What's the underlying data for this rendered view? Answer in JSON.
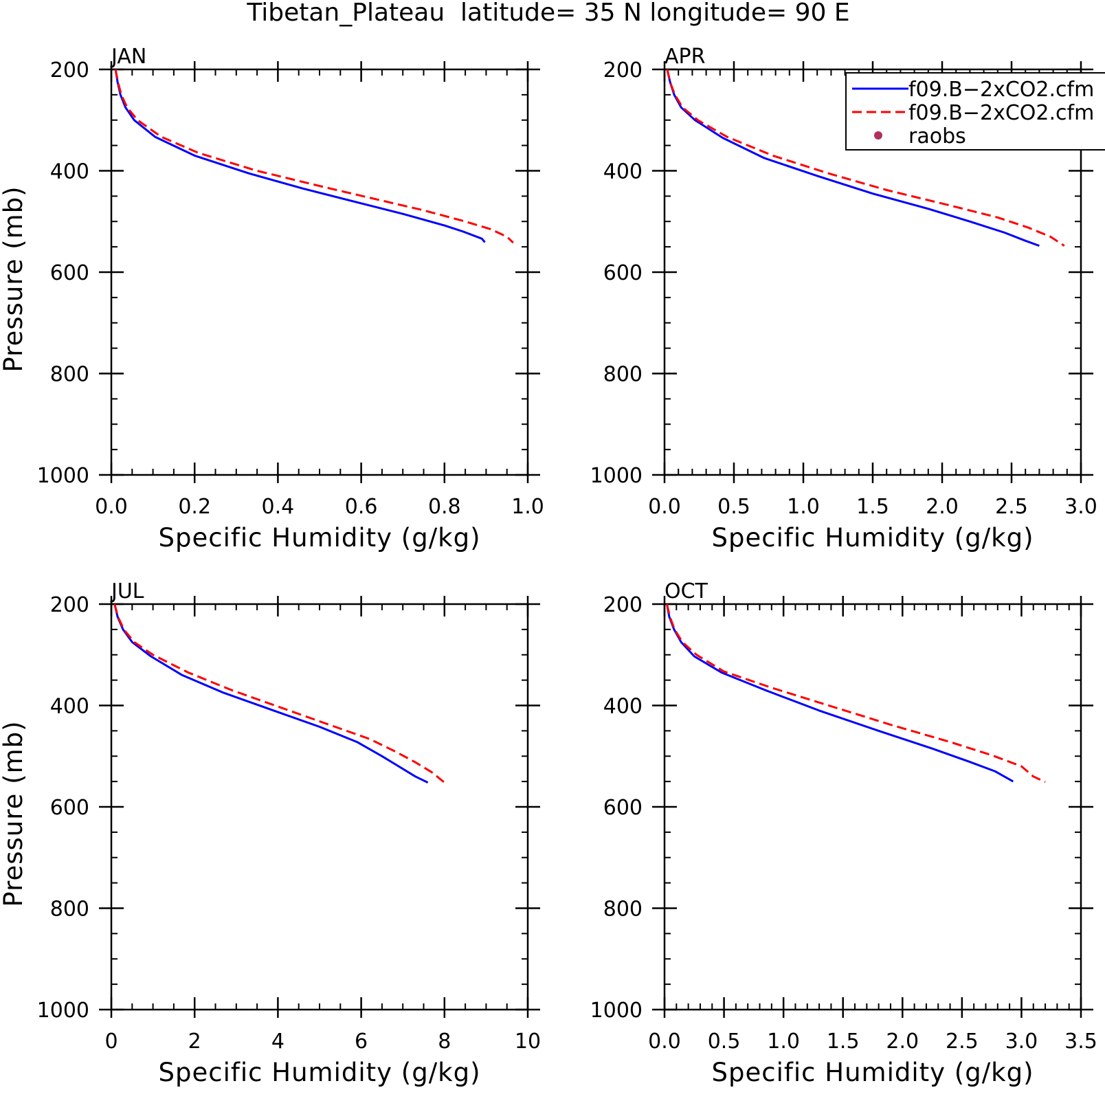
{
  "title": "Tibetan_Plateau  latitude= 35 N longitude= 90 E",
  "legend": {
    "placement": "top-right of APR panel",
    "entries": [
      {
        "label": "f09.B−2xCO2.cfm",
        "style": "solid",
        "color": "#0000ff"
      },
      {
        "label": "f09.B−2xCO2.cfm",
        "style": "dashed",
        "color": "#ff0000"
      },
      {
        "label": "raobs",
        "style": "marker",
        "color": "#b03060"
      }
    ]
  },
  "colors": {
    "series_solid": "#0000ff",
    "series_dashed": "#ff0000",
    "raobs": "#b03060"
  },
  "chart_data": [
    {
      "type": "line",
      "panel_label": "JAN",
      "xlabel": "Specific Humidity (g/kg)",
      "ylabel": "Pressure (mb)",
      "xlim": [
        0,
        1.0
      ],
      "ylim": [
        200,
        1000
      ],
      "y_inverted": true,
      "xticks": [
        0,
        0.2,
        0.4,
        0.6,
        0.8,
        1.0
      ],
      "xtick_labels": [
        "0.0",
        "0.2",
        "0.4",
        "0.6",
        "0.8",
        "1.0"
      ],
      "xminor": 0.05,
      "yticks": [
        200,
        400,
        600,
        800,
        1000
      ],
      "ytick_labels": [
        "200",
        "400",
        "600",
        "800",
        "1000"
      ],
      "series": [
        {
          "style": "solid",
          "points": [
            [
              0.01,
              200
            ],
            [
              0.015,
              225
            ],
            [
              0.022,
              250
            ],
            [
              0.034,
              275
            ],
            [
              0.055,
              300
            ],
            [
              0.105,
              333
            ],
            [
              0.2,
              370
            ],
            [
              0.33,
              405
            ],
            [
              0.46,
              435
            ],
            [
              0.58,
              460
            ],
            [
              0.7,
              485
            ],
            [
              0.8,
              508
            ],
            [
              0.845,
              520
            ],
            [
              0.89,
              534
            ],
            [
              0.897,
              541
            ]
          ]
        },
        {
          "style": "dashed",
          "points": [
            [
              0.01,
              200
            ],
            [
              0.016,
              225
            ],
            [
              0.024,
              250
            ],
            [
              0.038,
              275
            ],
            [
              0.063,
              300
            ],
            [
              0.12,
              333
            ],
            [
              0.21,
              365
            ],
            [
              0.35,
              400
            ],
            [
              0.5,
              430
            ],
            [
              0.63,
              455
            ],
            [
              0.75,
              478
            ],
            [
              0.85,
              500
            ],
            [
              0.91,
              515
            ],
            [
              0.95,
              530
            ],
            [
              0.965,
              542
            ]
          ]
        }
      ]
    },
    {
      "type": "line",
      "panel_label": "APR",
      "xlabel": "Specific Humidity (g/kg)",
      "ylabel": "",
      "xlim": [
        0,
        3.0
      ],
      "ylim": [
        200,
        1000
      ],
      "y_inverted": true,
      "xticks": [
        0,
        0.5,
        1.0,
        1.5,
        2.0,
        2.5,
        3.0
      ],
      "xtick_labels": [
        "0.0",
        "0.5",
        "1.0",
        "1.5",
        "2.0",
        "2.5",
        "3.0"
      ],
      "xminor": 0.1,
      "yticks": [
        200,
        400,
        600,
        800,
        1000
      ],
      "ytick_labels": [
        "200",
        "400",
        "600",
        "800",
        "1000"
      ],
      "series": [
        {
          "style": "solid",
          "points": [
            [
              0.02,
              200
            ],
            [
              0.04,
              225
            ],
            [
              0.07,
              250
            ],
            [
              0.12,
              275
            ],
            [
              0.22,
              300
            ],
            [
              0.42,
              335
            ],
            [
              0.72,
              375
            ],
            [
              1.1,
              410
            ],
            [
              1.5,
              445
            ],
            [
              1.9,
              475
            ],
            [
              2.2,
              500
            ],
            [
              2.45,
              522
            ],
            [
              2.6,
              538
            ],
            [
              2.7,
              548
            ]
          ]
        },
        {
          "style": "dashed",
          "points": [
            [
              0.02,
              200
            ],
            [
              0.04,
              225
            ],
            [
              0.075,
              250
            ],
            [
              0.13,
              275
            ],
            [
              0.24,
              300
            ],
            [
              0.45,
              333
            ],
            [
              0.78,
              370
            ],
            [
              1.18,
              405
            ],
            [
              1.6,
              438
            ],
            [
              2.05,
              468
            ],
            [
              2.4,
              492
            ],
            [
              2.62,
              512
            ],
            [
              2.78,
              530
            ],
            [
              2.88,
              548
            ]
          ]
        }
      ]
    },
    {
      "type": "line",
      "panel_label": "JUL",
      "xlabel": "Specific Humidity (g/kg)",
      "ylabel": "Pressure (mb)",
      "xlim": [
        0,
        10
      ],
      "ylim": [
        200,
        1000
      ],
      "y_inverted": true,
      "xticks": [
        0,
        2,
        4,
        6,
        8,
        10
      ],
      "xtick_labels": [
        "0",
        "2",
        "4",
        "6",
        "8",
        "10"
      ],
      "xminor": 0.5,
      "yticks": [
        200,
        400,
        600,
        800,
        1000
      ],
      "ytick_labels": [
        "200",
        "400",
        "600",
        "800",
        "1000"
      ],
      "series": [
        {
          "style": "solid",
          "points": [
            [
              0.08,
              200
            ],
            [
              0.15,
              225
            ],
            [
              0.28,
              250
            ],
            [
              0.5,
              275
            ],
            [
              0.95,
              303
            ],
            [
              1.7,
              340
            ],
            [
              2.7,
              375
            ],
            [
              3.9,
              410
            ],
            [
              5.0,
              442
            ],
            [
              5.9,
              472
            ],
            [
              6.5,
              500
            ],
            [
              6.9,
              520
            ],
            [
              7.3,
              540
            ],
            [
              7.6,
              552
            ]
          ]
        },
        {
          "style": "dashed",
          "points": [
            [
              0.08,
              200
            ],
            [
              0.16,
              225
            ],
            [
              0.3,
              250
            ],
            [
              0.55,
              275
            ],
            [
              1.0,
              300
            ],
            [
              1.85,
              335
            ],
            [
              2.9,
              370
            ],
            [
              4.1,
              405
            ],
            [
              5.2,
              437
            ],
            [
              6.2,
              466
            ],
            [
              6.8,
              490
            ],
            [
              7.3,
              512
            ],
            [
              7.7,
              532
            ],
            [
              8.0,
              552
            ]
          ]
        }
      ]
    },
    {
      "type": "line",
      "panel_label": "OCT",
      "xlabel": "Specific Humidity (g/kg)",
      "ylabel": "",
      "xlim": [
        0,
        3.5
      ],
      "ylim": [
        200,
        1000
      ],
      "y_inverted": true,
      "xticks": [
        0,
        0.5,
        1.0,
        1.5,
        2.0,
        2.5,
        3.0,
        3.5
      ],
      "xtick_labels": [
        "0.0",
        "0.5",
        "1.0",
        "1.5",
        "2.0",
        "2.5",
        "3.0",
        "3.5"
      ],
      "xminor": 0.1,
      "yticks": [
        200,
        400,
        600,
        800,
        1000
      ],
      "ytick_labels": [
        "200",
        "400",
        "600",
        "800",
        "1000"
      ],
      "series": [
        {
          "style": "solid",
          "points": [
            [
              0.02,
              200
            ],
            [
              0.04,
              225
            ],
            [
              0.08,
              250
            ],
            [
              0.14,
              275
            ],
            [
              0.25,
              303
            ],
            [
              0.48,
              335
            ],
            [
              0.85,
              370
            ],
            [
              1.3,
              410
            ],
            [
              1.8,
              450
            ],
            [
              2.25,
              485
            ],
            [
              2.55,
              510
            ],
            [
              2.78,
              530
            ],
            [
              2.93,
              550
            ]
          ]
        },
        {
          "style": "dashed",
          "points": [
            [
              0.02,
              200
            ],
            [
              0.045,
              225
            ],
            [
              0.085,
              250
            ],
            [
              0.15,
              275
            ],
            [
              0.27,
              300
            ],
            [
              0.5,
              333
            ],
            [
              0.9,
              365
            ],
            [
              1.38,
              400
            ],
            [
              1.9,
              438
            ],
            [
              2.4,
              472
            ],
            [
              2.75,
              498
            ],
            [
              3.0,
              520
            ],
            [
              3.1,
              540
            ],
            [
              3.2,
              551
            ]
          ]
        }
      ]
    }
  ]
}
